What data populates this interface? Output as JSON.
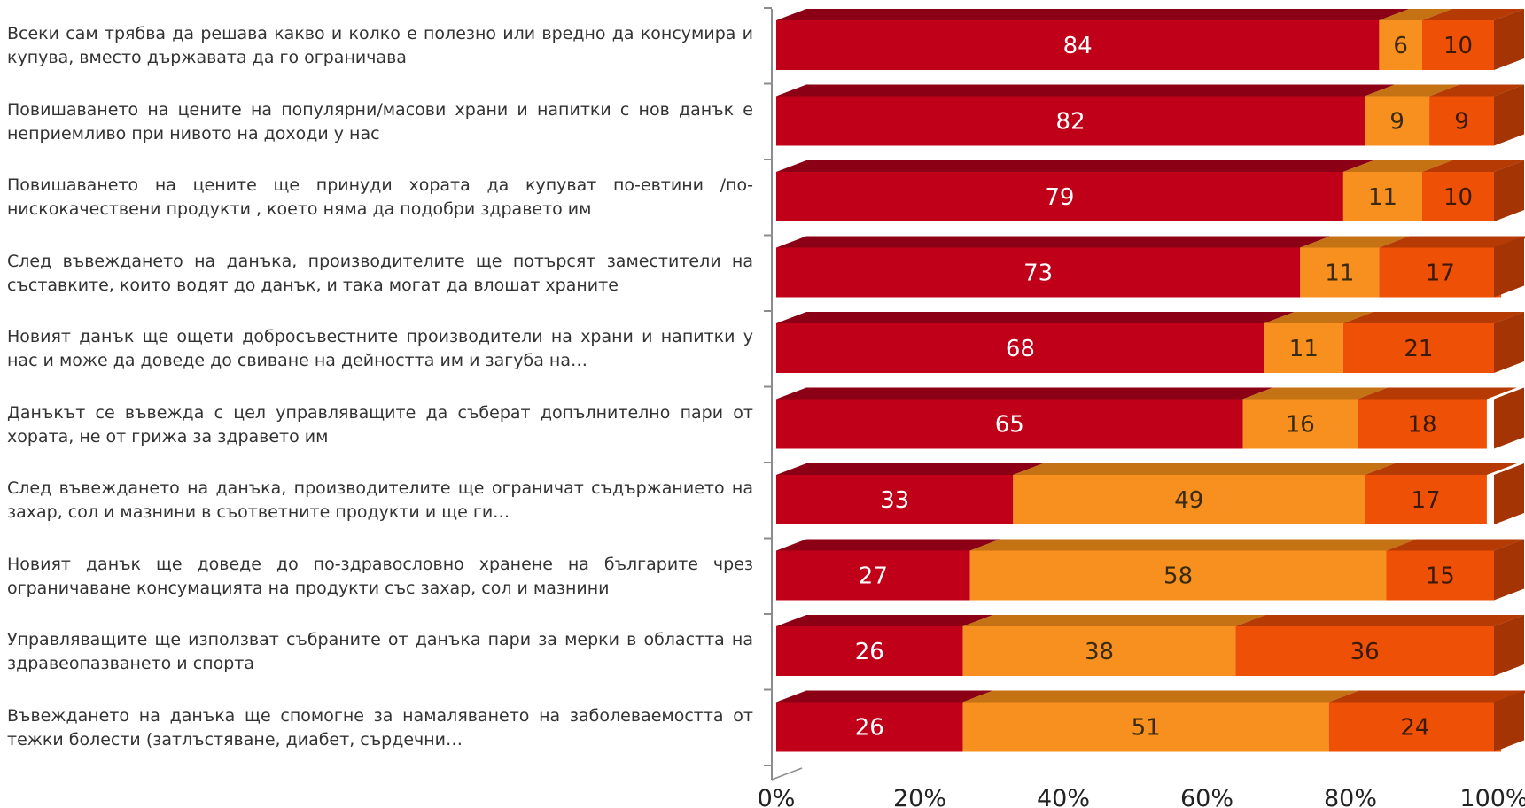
{
  "chart_data": {
    "type": "bar",
    "orientation": "horizontal",
    "stacked": true,
    "percent_stacked": true,
    "categories": [
      "Всеки сам трябва да решава какво и колко е полезно или вредно да консумира и купува, вместо държавата да го ограничава",
      "Повишаването на цените на популярни/масови храни и напитки с нов данък  е неприемливо при нивото на доходи у нас",
      "Повишаването на цените ще принуди хората да купуват по-евтини /по-нискокачествени продукти , което няма да подобри здравето им",
      "След въвеждането на данъка, производителите ще потърсят заместители на съставките, които водят до данък, и така могат да влошат храните",
      "Новият данък ще ощети добросъвестните производители на храни и напитки у нас и може да доведе до свиване на дейността им и загуба на…",
      "Данъкът се въвежда с цел управляващите да съберат допълнително пари от хората, не от грижа за здравето им",
      "След въвеждането на данъка, производителите ще ограничат съдържанието на захар, сол и мазнини в съответните продукти и ще ги…",
      "Новият данък ще доведе до по-здравословно хранене на българите чрез ограничаване консумацията на продукти със захар, сол и мазнини",
      "Управляващите ще използват събраните от данъка пари за мерки в областта на здравеопазването и спорта",
      "Въвеждането на данъка ще спомогне за намаляването на заболеваемостта от тежки болести (затлъстяване, диабет, сърдечни…"
    ],
    "series": [
      {
        "values": [
          84,
          82,
          79,
          73,
          68,
          65,
          33,
          27,
          26,
          26
        ],
        "color": "#c00018",
        "top_color": "#8c0015",
        "side_color": "#7a0010",
        "label_color": "#ffffff"
      },
      {
        "values": [
          6,
          9,
          11,
          11,
          11,
          16,
          49,
          58,
          38,
          51
        ],
        "color": "#f7901e",
        "top_color": "#c47214",
        "side_color": "#b86610",
        "label_color": "#3a2a10"
      },
      {
        "values": [
          10,
          9,
          10,
          17,
          21,
          18,
          17,
          15,
          36,
          24
        ],
        "color": "#ee5006",
        "top_color": "#b53a04",
        "side_color": "#a53404",
        "label_color": "#3a1a08"
      }
    ],
    "xaxis": {
      "range": [
        0,
        100
      ],
      "ticks": [
        0,
        20,
        40,
        60,
        80,
        100
      ],
      "tick_labels": [
        "0%",
        "20%",
        "40%",
        "60%",
        "80%",
        "100%"
      ]
    },
    "grid": false,
    "legend": "none"
  }
}
